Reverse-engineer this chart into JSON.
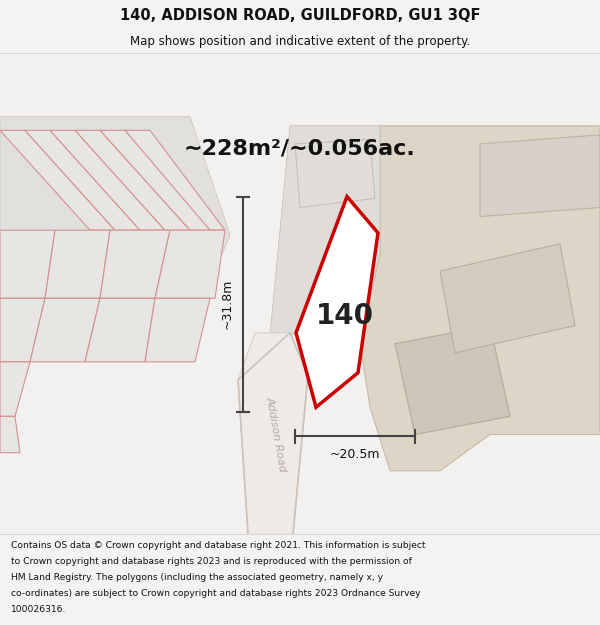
{
  "title": "140, ADDISON ROAD, GUILDFORD, GU1 3QF",
  "subtitle": "Map shows position and indicative extent of the property.",
  "area_text": "~228m²/~0.056ac.",
  "dim_width": "~20.5m",
  "dim_height": "~31.8m",
  "property_number": "140",
  "footer_lines": [
    "Contains OS data © Crown copyright and database right 2021. This information is subject",
    "to Crown copyright and database rights 2023 and is reproduced with the permission of",
    "HM Land Registry. The polygons (including the associated geometry, namely x, y",
    "co-ordinates) are subject to Crown copyright and database rights 2023 Ordnance Survey",
    "100026316."
  ],
  "bg_color": "#f5f3f1",
  "map_bg": "#f5f3f1",
  "prop_fill": "#ffffff",
  "prop_edge": "#cc0000",
  "dim_color": "#444444",
  "text_color": "#111111",
  "road_label": "Addison Road",
  "header_bg": "#f5f3f1",
  "footer_bg": "#ffffff",
  "plot_fill": "#e8e6e2",
  "plot_edge": "#d49090",
  "road_fill": "#edeae7",
  "tan_fill": "#ddd5c5",
  "tan_edge": "#c8b8a8",
  "gray_fill": "#dcdad6",
  "gray_edge": "#c0b8b0"
}
